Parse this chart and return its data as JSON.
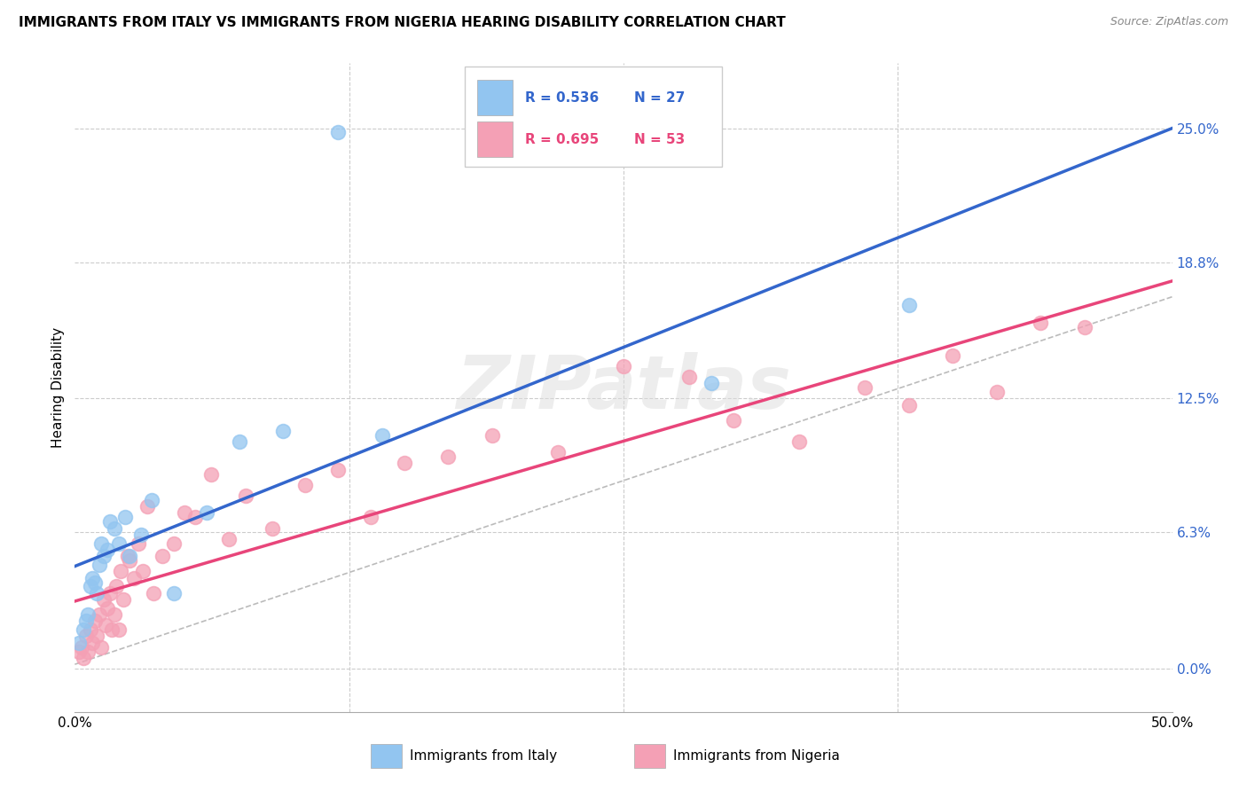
{
  "title": "IMMIGRANTS FROM ITALY VS IMMIGRANTS FROM NIGERIA HEARING DISABILITY CORRELATION CHART",
  "source": "Source: ZipAtlas.com",
  "ylabel": "Hearing Disability",
  "ytick_values": [
    0.0,
    6.3,
    12.5,
    18.8,
    25.0
  ],
  "xlim": [
    0.0,
    50.0
  ],
  "ylim": [
    -2.0,
    28.0
  ],
  "italy_color": "#92C5F0",
  "nigeria_color": "#F4A0B5",
  "italy_line_color": "#3366CC",
  "nigeria_line_color": "#E8457A",
  "watermark_text": "ZIPatlas",
  "italy_R": "0.536",
  "italy_N": "27",
  "nigeria_R": "0.695",
  "nigeria_N": "53",
  "italy_scatter_x": [
    0.2,
    0.4,
    0.5,
    0.6,
    0.7,
    0.8,
    0.9,
    1.0,
    1.1,
    1.2,
    1.3,
    1.5,
    1.6,
    1.8,
    2.0,
    2.3,
    2.5,
    3.0,
    3.5,
    4.5,
    6.0,
    7.5,
    9.5,
    12.0,
    14.0,
    29.0,
    38.0
  ],
  "italy_scatter_y": [
    1.2,
    1.8,
    2.2,
    2.5,
    3.8,
    4.2,
    4.0,
    3.5,
    4.8,
    5.8,
    5.2,
    5.5,
    6.8,
    6.5,
    5.8,
    7.0,
    5.2,
    6.2,
    7.8,
    3.5,
    7.2,
    10.5,
    11.0,
    24.8,
    10.8,
    13.2,
    16.8
  ],
  "nigeria_scatter_x": [
    0.2,
    0.3,
    0.4,
    0.5,
    0.6,
    0.7,
    0.8,
    0.9,
    1.0,
    1.1,
    1.2,
    1.3,
    1.4,
    1.5,
    1.6,
    1.7,
    1.8,
    1.9,
    2.0,
    2.1,
    2.2,
    2.4,
    2.5,
    2.7,
    2.9,
    3.1,
    3.3,
    3.6,
    4.0,
    4.5,
    5.0,
    5.5,
    6.2,
    7.0,
    7.8,
    9.0,
    10.5,
    12.0,
    13.5,
    15.0,
    17.0,
    19.0,
    22.0,
    25.0,
    28.0,
    30.0,
    33.0,
    36.0,
    38.0,
    40.0,
    42.0,
    44.0,
    46.0
  ],
  "nigeria_scatter_y": [
    0.8,
    1.0,
    0.5,
    1.5,
    0.8,
    1.8,
    1.2,
    2.2,
    1.5,
    2.5,
    1.0,
    3.2,
    2.0,
    2.8,
    3.5,
    1.8,
    2.5,
    3.8,
    1.8,
    4.5,
    3.2,
    5.2,
    5.0,
    4.2,
    5.8,
    4.5,
    7.5,
    3.5,
    5.2,
    5.8,
    7.2,
    7.0,
    9.0,
    6.0,
    8.0,
    6.5,
    8.5,
    9.2,
    7.0,
    9.5,
    9.8,
    10.8,
    10.0,
    14.0,
    13.5,
    11.5,
    10.5,
    13.0,
    12.2,
    14.5,
    12.8,
    16.0,
    15.8
  ]
}
